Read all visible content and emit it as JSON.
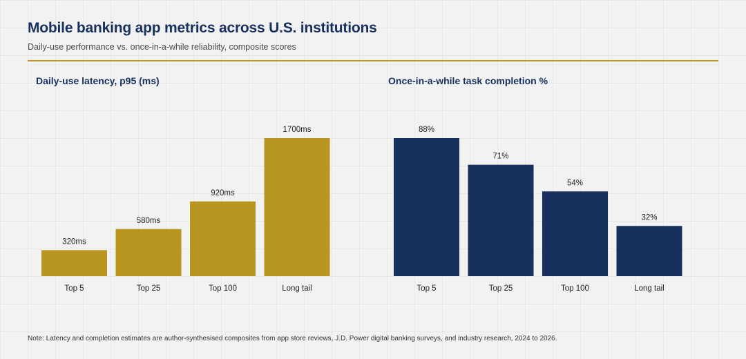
{
  "header": {
    "title": "Mobile banking app metrics across U.S. institutions",
    "subtitle": "Daily-use performance vs. once-in-a-while reliability, composite scores"
  },
  "colors": {
    "gold": "#b8961f",
    "navy": "#17305e",
    "rule": "#b8961f"
  },
  "chart_data": [
    {
      "type": "bar",
      "title": "Daily-use latency, p95 (ms)",
      "categories": [
        "Top 5",
        "Top 25",
        "Top 100",
        "Long tail"
      ],
      "values": [
        320,
        580,
        920,
        1700
      ],
      "data_labels": [
        "320ms",
        "580ms",
        "920ms",
        "1700ms"
      ],
      "ylim": [
        0,
        1700
      ],
      "color": "#b8961f",
      "grid": false
    },
    {
      "type": "bar",
      "title": "Once-in-a-while task completion %",
      "categories": [
        "Top 5",
        "Top 25",
        "Top 100",
        "Long tail"
      ],
      "values": [
        88,
        71,
        54,
        32
      ],
      "data_labels": [
        "88%",
        "71%",
        "54%",
        "32%"
      ],
      "ylim": [
        0,
        88
      ],
      "color": "#17305e",
      "grid": false
    }
  ],
  "footer": {
    "note": "Note: Latency and completion estimates are author-synthesised composites from app store reviews, J.D. Power digital banking surveys, and industry research, 2024 to 2026."
  }
}
